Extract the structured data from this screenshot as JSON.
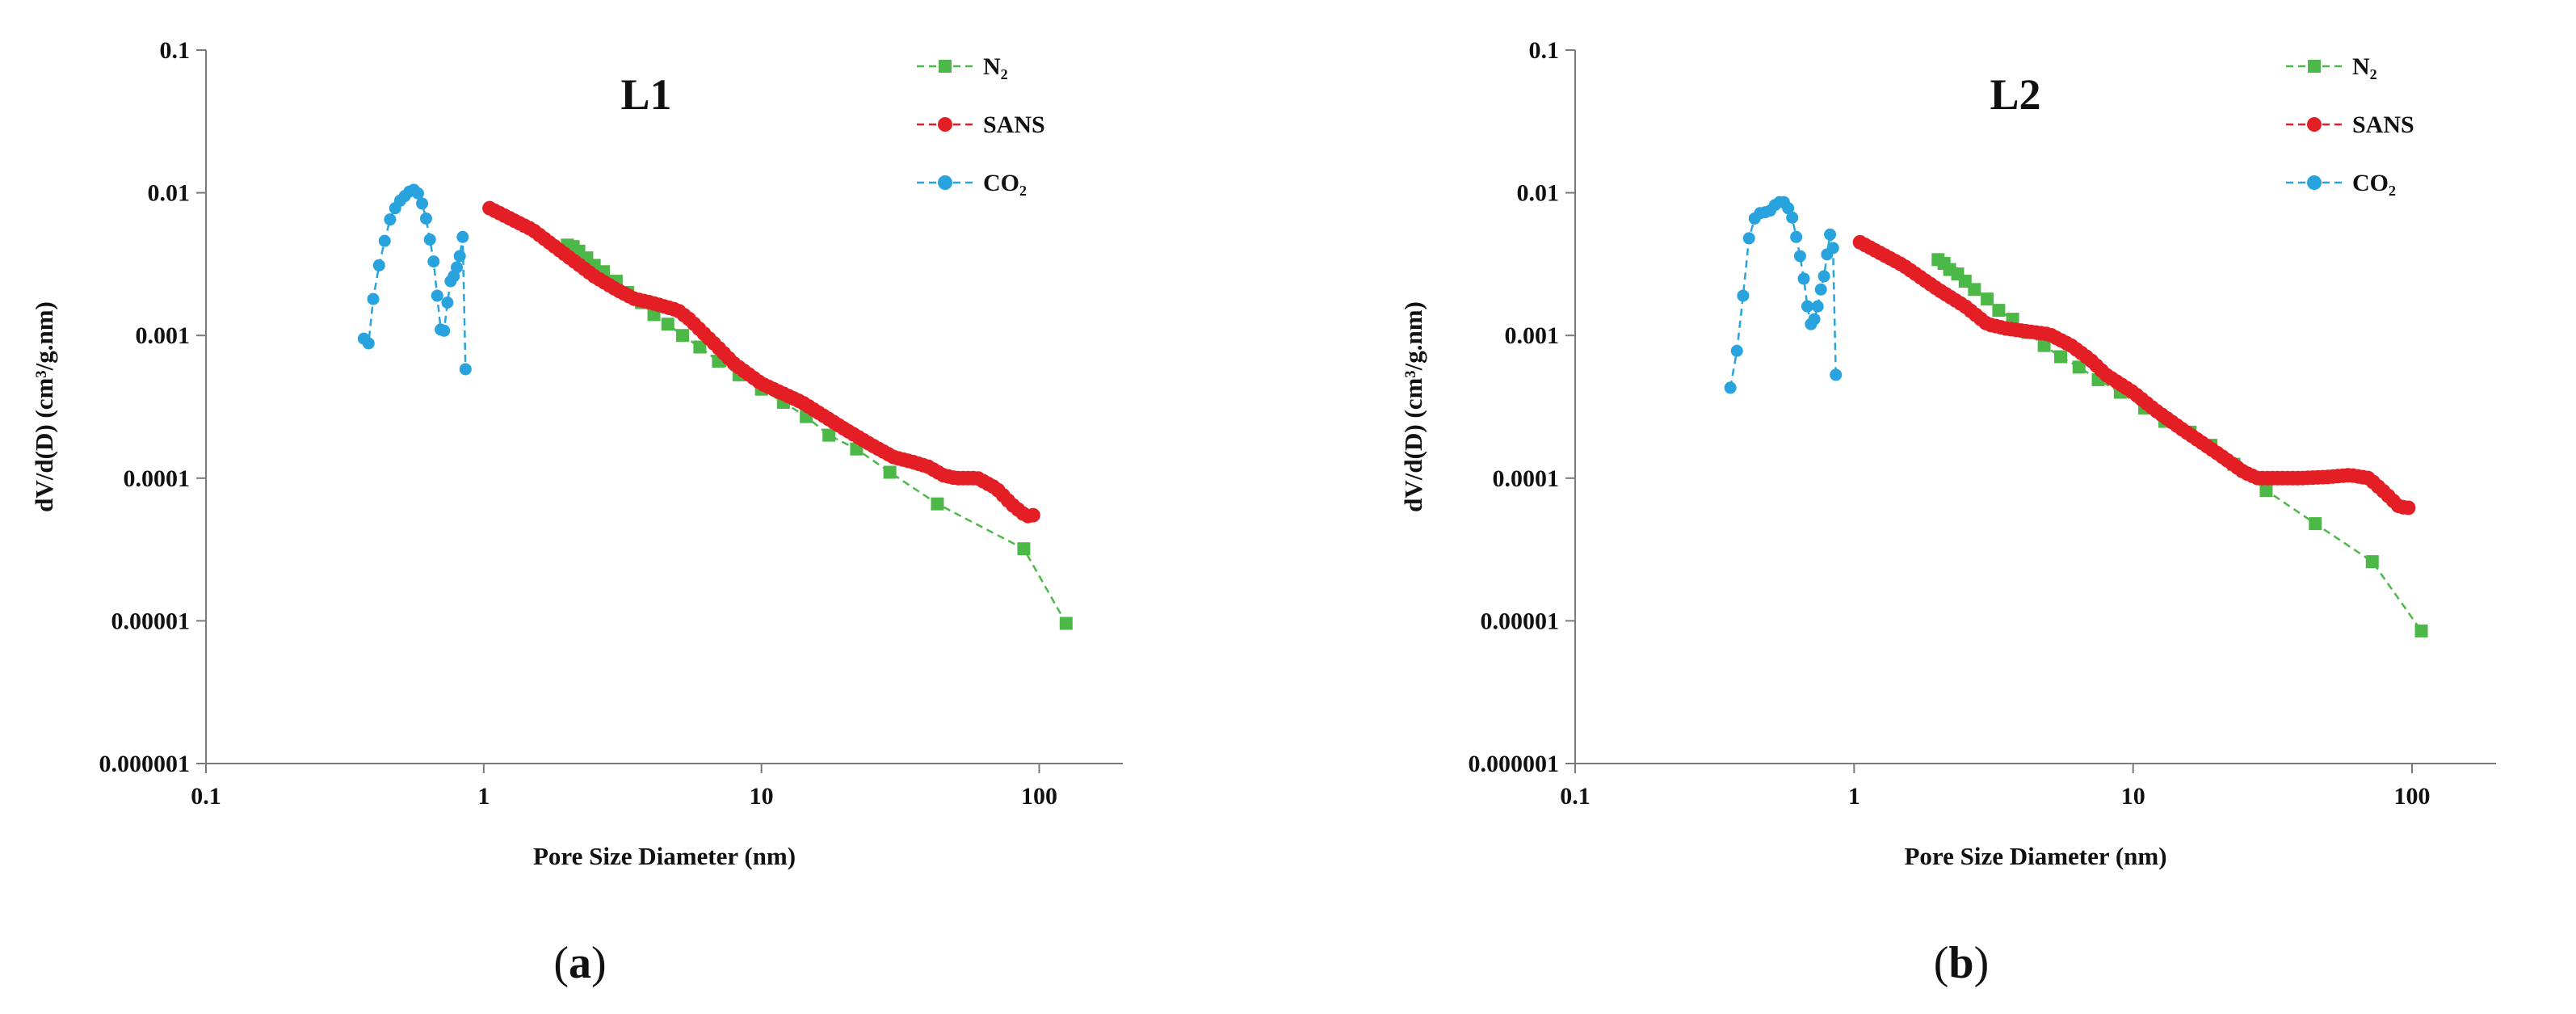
{
  "chart_data": [
    {
      "type": "scatter",
      "title": "L1",
      "caption_letter": "a",
      "xlabel": "Pore Size Diameter (nm)",
      "ylabel": "dV/d(D) (cm³/g.nm)",
      "xscale": "log",
      "yscale": "log",
      "xlim": [
        0.1,
        200
      ],
      "ylim": [
        1e-06,
        0.1
      ],
      "x_ticks": [
        0.1,
        1,
        10,
        100
      ],
      "x_tick_labels": [
        "0.1",
        "1",
        "10",
        "100"
      ],
      "y_ticks": [
        1e-06,
        1e-05,
        0.0001,
        0.001,
        0.01,
        0.1
      ],
      "y_tick_labels": [
        "0.000001",
        "0.00001",
        "0.0001",
        "0.001",
        "0.01",
        "0.1"
      ],
      "legend_position": "top-right",
      "series": [
        {
          "name": "N₂",
          "color": "#4CB848",
          "marker": "square",
          "line": "dashed",
          "x": [
            2.0,
            2.1,
            2.2,
            2.35,
            2.5,
            2.7,
            3.0,
            3.3,
            3.7,
            4.1,
            4.6,
            5.2,
            6.0,
            7.0,
            8.3,
            10,
            12,
            14.5,
            17.5,
            22,
            29,
            43,
            88,
            125
          ],
          "y": [
            0.0043,
            0.0042,
            0.0039,
            0.0035,
            0.0031,
            0.0028,
            0.0024,
            0.002,
            0.0017,
            0.0014,
            0.0012,
            0.001,
            0.00083,
            0.00066,
            0.00053,
            0.00042,
            0.00034,
            0.00027,
            0.0002,
            0.00016,
            0.00011,
            6.6e-05,
            3.2e-05,
            9.6e-06
          ]
        },
        {
          "name": "SANS",
          "color": "#E31E24",
          "marker": "circle",
          "line": "dashed",
          "x_range": [
            1.05,
            95
          ],
          "anchors_x": [
            1.05,
            1.5,
            2.0,
            2.5,
            3.0,
            3.5,
            4.0,
            5.0,
            5.5,
            6.0,
            7.0,
            8.0,
            10,
            14,
            20,
            25,
            30,
            35,
            40,
            45,
            50,
            55,
            60,
            70,
            80,
            90,
            95
          ],
          "anchors_y": [
            0.0078,
            0.0055,
            0.0036,
            0.0026,
            0.0021,
            0.0018,
            0.0017,
            0.0015,
            0.0013,
            0.0011,
            0.00082,
            0.00063,
            0.00046,
            0.00034,
            0.00022,
            0.00017,
            0.00014,
            0.00013,
            0.00012,
            0.000105,
            0.0001,
            0.0001,
            0.0001,
            8.5e-05,
            6.5e-05,
            5.4e-05,
            5.5e-05
          ]
        },
        {
          "name": "CO₂",
          "color": "#29A3DD",
          "marker": "circle",
          "line": "dashed",
          "x": [
            0.37,
            0.385,
            0.4,
            0.42,
            0.44,
            0.46,
            0.48,
            0.5,
            0.52,
            0.54,
            0.56,
            0.58,
            0.6,
            0.62,
            0.64,
            0.66,
            0.68,
            0.7,
            0.72,
            0.74,
            0.76,
            0.78,
            0.8,
            0.82,
            0.84,
            0.86
          ],
          "y": [
            0.00095,
            0.00088,
            0.0018,
            0.0031,
            0.0046,
            0.0065,
            0.0078,
            0.0088,
            0.0095,
            0.0102,
            0.0105,
            0.0099,
            0.0084,
            0.0066,
            0.0047,
            0.0033,
            0.0019,
            0.0011,
            0.00108,
            0.0017,
            0.0024,
            0.0026,
            0.003,
            0.0036,
            0.0049,
            0.00058
          ]
        }
      ]
    },
    {
      "type": "scatter",
      "title": "L2",
      "caption_letter": "b",
      "xlabel": "Pore Size Diameter (nm)",
      "ylabel": "dV/d(D) (cm³/g.nm)",
      "xscale": "log",
      "yscale": "log",
      "xlim": [
        0.1,
        200
      ],
      "ylim": [
        1e-06,
        0.1
      ],
      "x_ticks": [
        0.1,
        1,
        10,
        100
      ],
      "x_tick_labels": [
        "0.1",
        "1",
        "10",
        "100"
      ],
      "y_ticks": [
        1e-06,
        1e-05,
        0.0001,
        0.001,
        0.01,
        0.1
      ],
      "y_tick_labels": [
        "0.000001",
        "0.00001",
        "0.0001",
        "0.001",
        "0.01",
        "0.1"
      ],
      "legend_position": "top-right",
      "series": [
        {
          "name": "N₂",
          "color": "#4CB848",
          "marker": "square",
          "line": "dashed",
          "x": [
            2.0,
            2.1,
            2.2,
            2.35,
            2.5,
            2.7,
            3.0,
            3.3,
            3.7,
            4.2,
            4.8,
            5.5,
            6.4,
            7.5,
            9.0,
            11,
            13,
            16,
            19,
            23,
            30,
            45,
            72,
            108
          ],
          "y": [
            0.0034,
            0.0032,
            0.0029,
            0.0027,
            0.0024,
            0.0021,
            0.0018,
            0.0015,
            0.0013,
            0.00105,
            0.00085,
            0.00071,
            0.0006,
            0.00049,
            0.0004,
            0.00031,
            0.00025,
            0.00021,
            0.00017,
            0.000125,
            8.2e-05,
            4.8e-05,
            2.6e-05,
            8.5e-06
          ]
        },
        {
          "name": "SANS",
          "color": "#E31E24",
          "marker": "circle",
          "line": "dashed",
          "x_range": [
            1.05,
            97
          ],
          "anchors_x": [
            1.05,
            1.5,
            2.0,
            2.5,
            3.0,
            3.5,
            4.0,
            5.0,
            6.0,
            7.0,
            8.0,
            10,
            12,
            15,
            20,
            25,
            28,
            30,
            40,
            50,
            60,
            70,
            80,
            90,
            97
          ],
          "anchors_y": [
            0.0045,
            0.0031,
            0.0021,
            0.0016,
            0.0012,
            0.00112,
            0.00108,
            0.00102,
            0.00085,
            0.00068,
            0.00053,
            0.0004,
            0.0003,
            0.00022,
            0.00015,
            0.00011,
            0.0001,
            0.0001,
            0.0001,
            0.000102,
            0.000105,
            0.0001,
            7.9e-05,
            6.3e-05,
            6.2e-05
          ]
        },
        {
          "name": "CO₂",
          "color": "#29A3DD",
          "marker": "circle",
          "line": "dashed",
          "x": [
            0.36,
            0.38,
            0.4,
            0.42,
            0.44,
            0.46,
            0.48,
            0.5,
            0.52,
            0.54,
            0.56,
            0.58,
            0.6,
            0.62,
            0.64,
            0.66,
            0.68,
            0.7,
            0.72,
            0.74,
            0.76,
            0.78,
            0.8,
            0.82,
            0.84,
            0.86
          ],
          "y": [
            0.00043,
            0.00078,
            0.0019,
            0.0048,
            0.0066,
            0.0072,
            0.0073,
            0.0075,
            0.0082,
            0.0086,
            0.0086,
            0.0078,
            0.0067,
            0.0049,
            0.0036,
            0.0025,
            0.0016,
            0.0012,
            0.0013,
            0.0016,
            0.0021,
            0.0026,
            0.0037,
            0.0051,
            0.0041,
            0.00053
          ]
        }
      ]
    }
  ]
}
